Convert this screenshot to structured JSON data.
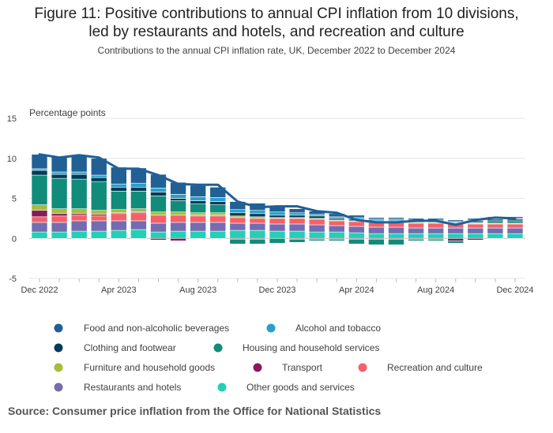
{
  "title_line1": "Figure 11: Positive contributions to annual CPI inflation from 10 divisions,",
  "title_line2": "led by restaurants and hotels, and recreation and culture",
  "subtitle": "Contributions to the annual CPI inflation rate, UK, December 2022 to December 2024",
  "source": "Source: Consumer price inflation from the Office for National Statistics",
  "colors": {
    "food": "#206095",
    "alcohol": "#27a0cc",
    "clothing": "#003c57",
    "housing": "#118c7b",
    "furniture": "#a8bd3a",
    "transport": "#871a5b",
    "recreation": "#f66068",
    "restaurants": "#746cb1",
    "other": "#22d0b6",
    "line": "#206095"
  },
  "chart_data": {
    "type": "bar",
    "stacked": true,
    "title": "Figure 11: Positive contributions to annual CPI inflation from 10 divisions, led by restaurants and hotels, and recreation and culture",
    "subtitle": "Contributions to the annual CPI inflation rate, UK, December 2022 to December 2024",
    "ylabel": "Percentage points",
    "xlabel": "",
    "ylim": [
      -5,
      15
    ],
    "yticks": [
      -5,
      0,
      5,
      10,
      15
    ],
    "grid": true,
    "legend_position": "bottom",
    "categories": [
      "Dec 2022",
      "Jan 2023",
      "Feb 2023",
      "Mar 2023",
      "Apr 2023",
      "May 2023",
      "Jun 2023",
      "Jul 2023",
      "Aug 2023",
      "Sep 2023",
      "Oct 2023",
      "Nov 2023",
      "Dec 2023",
      "Jan 2024",
      "Feb 2024",
      "Mar 2024",
      "Apr 2024",
      "May 2024",
      "Jun 2024",
      "Jul 2024",
      "Aug 2024",
      "Sep 2024",
      "Oct 2024",
      "Nov 2024",
      "Dec 2024"
    ],
    "tick_labels": [
      {
        "index": 0,
        "label": "Dec 2022"
      },
      {
        "index": 4,
        "label": "Apr 2023"
      },
      {
        "index": 8,
        "label": "Aug 2023"
      },
      {
        "index": 12,
        "label": "Dec 2023"
      },
      {
        "index": 16,
        "label": "Apr 2024"
      },
      {
        "index": 20,
        "label": "Aug 2024"
      },
      {
        "index": 24,
        "label": "Dec 2024"
      }
    ],
    "series": [
      {
        "key": "other",
        "name": "Other goods and services",
        "values": [
          0.8,
          0.8,
          0.9,
          0.9,
          1.0,
          1.1,
          0.8,
          0.9,
          0.9,
          0.9,
          1.0,
          1.0,
          0.9,
          0.9,
          0.8,
          0.8,
          0.7,
          0.6,
          0.6,
          0.6,
          0.6,
          0.6,
          0.6,
          0.6,
          0.6
        ]
      },
      {
        "key": "restaurants",
        "name": "Restaurants and hotels",
        "values": [
          1.2,
          1.2,
          1.3,
          1.3,
          1.2,
          1.1,
          1.1,
          1.1,
          1.1,
          1.1,
          0.9,
          0.9,
          0.9,
          0.9,
          0.9,
          0.8,
          0.8,
          0.8,
          0.8,
          0.7,
          0.7,
          0.7,
          0.7,
          0.7,
          0.7
        ]
      },
      {
        "key": "recreation",
        "name": "Recreation and culture",
        "values": [
          0.7,
          0.8,
          0.7,
          0.6,
          0.9,
          1.0,
          1.0,
          0.9,
          0.8,
          0.8,
          0.7,
          0.6,
          0.7,
          0.7,
          0.7,
          0.6,
          0.6,
          0.6,
          0.6,
          0.6,
          0.6,
          0.5,
          0.5,
          0.5,
          0.5
        ]
      },
      {
        "key": "transport",
        "name": "Transport",
        "values": [
          0.8,
          0.3,
          0.2,
          0.2,
          0.1,
          0.1,
          -0.2,
          -0.3,
          0.1,
          0.1,
          -0.1,
          -0.1,
          0.0,
          -0.1,
          -0.1,
          -0.1,
          -0.1,
          -0.1,
          -0.1,
          -0.1,
          -0.1,
          -0.3,
          -0.2,
          0.0,
          0.0
        ]
      },
      {
        "key": "furniture",
        "name": "Furniture and household goods",
        "values": [
          0.7,
          0.6,
          0.6,
          0.5,
          0.4,
          0.4,
          0.4,
          0.4,
          0.3,
          0.3,
          0.2,
          0.2,
          0.1,
          0.1,
          0.1,
          0.1,
          0.1,
          0.1,
          0.1,
          0.1,
          0.1,
          0.1,
          0.1,
          0.1,
          0.1
        ]
      },
      {
        "key": "housing",
        "name": "Housing and household services",
        "values": [
          3.7,
          3.8,
          3.7,
          3.6,
          2.3,
          2.2,
          2.0,
          1.4,
          1.1,
          1.0,
          -0.6,
          -0.6,
          -0.6,
          -0.4,
          -0.2,
          -0.2,
          -0.6,
          -0.7,
          -0.7,
          -0.2,
          -0.2,
          -0.3,
          0.1,
          0.3,
          0.3
        ]
      },
      {
        "key": "clothing",
        "name": "Clothing and footwear",
        "values": [
          0.6,
          0.5,
          0.6,
          0.5,
          0.5,
          0.5,
          0.5,
          0.3,
          0.4,
          0.4,
          0.4,
          0.4,
          0.3,
          0.3,
          0.3,
          0.2,
          0.2,
          0.1,
          0.1,
          0.1,
          0.1,
          0.1,
          0.2,
          0.2,
          0.2
        ]
      },
      {
        "key": "alcohol",
        "name": "Alcohol and tobacco",
        "values": [
          0.2,
          0.3,
          0.3,
          0.3,
          0.4,
          0.5,
          0.5,
          0.5,
          0.5,
          0.5,
          0.4,
          0.4,
          0.4,
          0.3,
          0.2,
          0.2,
          0.2,
          0.2,
          0.2,
          0.2,
          0.2,
          0.1,
          0.1,
          0.1,
          0.1
        ]
      },
      {
        "key": "food",
        "name": "Food and non-alcoholic beverages",
        "values": [
          1.8,
          1.9,
          2.0,
          2.1,
          2.1,
          1.9,
          1.7,
          1.5,
          1.4,
          1.3,
          1.0,
          0.9,
          0.8,
          0.5,
          0.4,
          0.4,
          0.3,
          0.2,
          0.2,
          0.2,
          0.2,
          0.2,
          0.2,
          0.2,
          0.2
        ]
      }
    ],
    "line": {
      "name": "CPI annual rate",
      "values": [
        10.5,
        10.1,
        10.4,
        10.1,
        8.7,
        8.7,
        7.9,
        6.8,
        6.7,
        6.7,
        4.6,
        3.9,
        4.0,
        4.0,
        3.4,
        3.2,
        2.3,
        2.0,
        2.0,
        2.2,
        2.2,
        1.7,
        2.3,
        2.6,
        2.5
      ]
    }
  },
  "legend": [
    [
      {
        "key": "food",
        "name": "Food and non-alcoholic beverages"
      },
      {
        "key": "alcohol",
        "name": "Alcohol and tobacco"
      }
    ],
    [
      {
        "key": "clothing",
        "name": "Clothing and footwear"
      },
      {
        "key": "housing",
        "name": "Housing and household services"
      }
    ],
    [
      {
        "key": "furniture",
        "name": "Furniture and household goods"
      },
      {
        "key": "transport",
        "name": "Transport"
      },
      {
        "key": "recreation",
        "name": "Recreation and culture"
      }
    ],
    [
      {
        "key": "restaurants",
        "name": "Restaurants and hotels"
      },
      {
        "key": "other",
        "name": "Other goods and services"
      }
    ]
  ]
}
